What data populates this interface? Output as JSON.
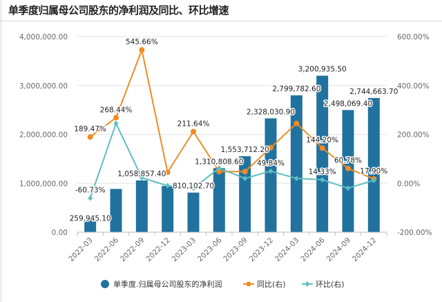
{
  "chart_data": {
    "type": "bar+line",
    "title": "单季度归属母公司股东的净利润及同比、环比增速",
    "categories": [
      "2022-03",
      "2022-06",
      "2022-09",
      "2022-12",
      "2023-03",
      "2023-06",
      "2023-09",
      "2023-12",
      "2024-03",
      "2024-06",
      "2024-09",
      "2024-12"
    ],
    "left_axis": {
      "ylim": [
        0,
        4000000
      ],
      "ticks": [
        "0.00",
        "1,000,000.00",
        "2,000,000.00",
        "3,000,000.00",
        "4,000,000.00"
      ],
      "tick_values": [
        0,
        1000000,
        2000000,
        3000000,
        4000000
      ]
    },
    "right_axis": {
      "ylim": [
        -200,
        600
      ],
      "ticks": [
        "-200.00%",
        "0.00%",
        "200.00%",
        "400.00%",
        "600.00%"
      ],
      "tick_values": [
        -200,
        0,
        200,
        400,
        600
      ]
    },
    "grid": true,
    "legend_position": "bottom",
    "series": [
      {
        "name": "单季度.归属母公司股东的净利润",
        "type": "bar",
        "axis": "left",
        "color": "#21729f",
        "values": [
          259945.1,
          885000,
          1058857.4,
          945000,
          810102.7,
          1310808.6,
          1553712.2,
          2328030.9,
          2799782.6,
          3200935.5,
          2498069.4,
          2744663.7
        ],
        "labels": [
          "259,945.10",
          "",
          "1,058,857.40",
          "",
          "810,102.70",
          "1,310,808.60",
          "1,553,712.20",
          "2,328,030.90",
          "2,799,782.60",
          "3,200,935.50",
          "2,498,069.40",
          "2,744,663.70"
        ]
      },
      {
        "name": "同比(右)",
        "type": "line",
        "axis": "right",
        "color": "#f08c22",
        "values": [
          189.47,
          268.44,
          545.66,
          45,
          211.64,
          48,
          48,
          146,
          245,
          144.2,
          60.78,
          17.9
        ],
        "labels": [
          "189.47%",
          "268.44%",
          "545.66%",
          "",
          "211.64%",
          "",
          "",
          "",
          "",
          "144.20%",
          "60.78%",
          "17.90%"
        ]
      },
      {
        "name": "环比(右)",
        "type": "line",
        "axis": "right",
        "color": "#5bbfc0",
        "values": [
          -60.73,
          245,
          23,
          -10,
          -20,
          62,
          20,
          49.84,
          20,
          14.33,
          -20,
          12
        ],
        "labels": [
          "-60.73%",
          "",
          "",
          "",
          "",
          "",
          "",
          "49.84%",
          "",
          "14.33%",
          "",
          ""
        ]
      }
    ]
  }
}
